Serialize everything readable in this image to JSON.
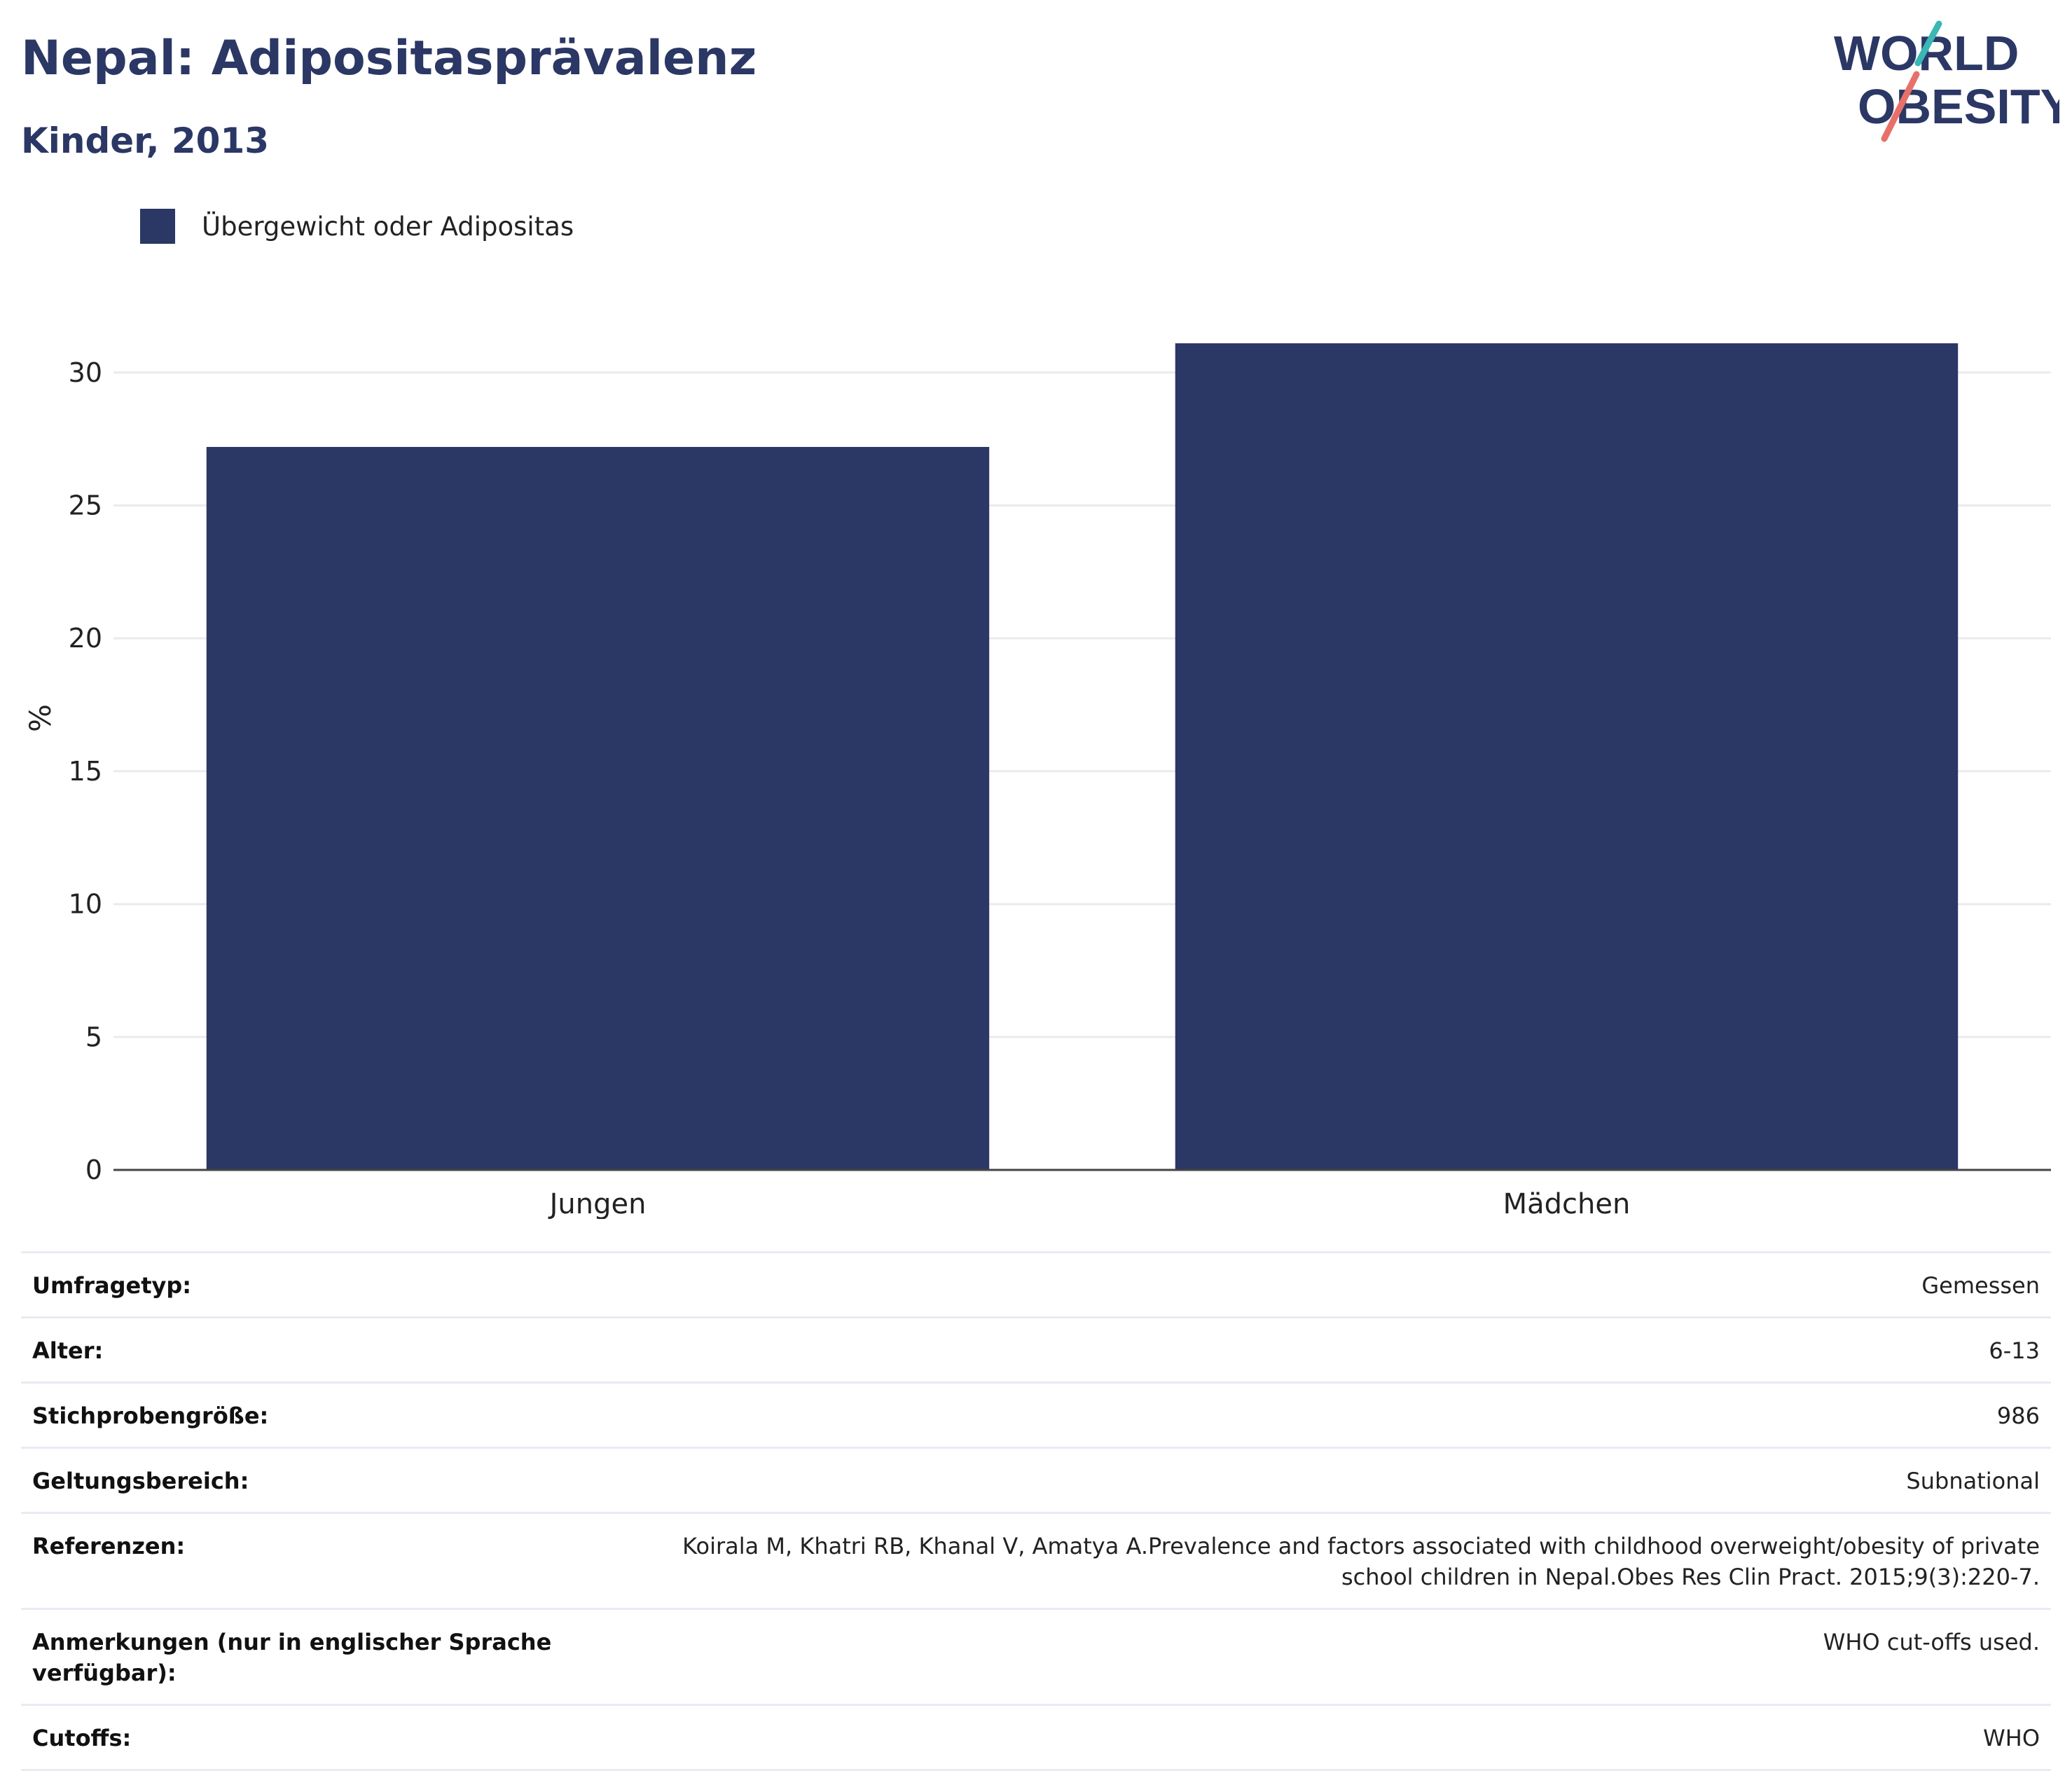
{
  "header": {
    "title": "Nepal: Adipositasprävalenz",
    "subtitle": "Kinder, 2013"
  },
  "logo": {
    "line1": "WORLD",
    "line2": "OBESITY",
    "text_color": "#2b3764",
    "slash_teal": "#3bb7b5",
    "slash_coral": "#e8706a"
  },
  "chart_data": {
    "type": "bar",
    "title": "",
    "categories": [
      "Jungen",
      "Mädchen"
    ],
    "series": [
      {
        "name": "Übergewicht oder Adipositas",
        "values": [
          27.2,
          31.1
        ],
        "color": "#2b3764"
      }
    ],
    "ylabel": "%",
    "xlabel": "",
    "ylim": [
      0,
      34
    ],
    "yticks": [
      0,
      5,
      10,
      15,
      20,
      25,
      30
    ],
    "grid": true,
    "legend_position": "top-left"
  },
  "details": [
    {
      "label": "Umfragetyp:",
      "value": "Gemessen"
    },
    {
      "label": "Alter:",
      "value": "6-13"
    },
    {
      "label": "Stichprobengröße:",
      "value": "986"
    },
    {
      "label": "Geltungsbereich:",
      "value": "Subnational"
    },
    {
      "label": "Referenzen:",
      "value": "Koirala M, Khatri RB, Khanal V, Amatya A.Prevalence and factors associated with childhood overweight/obesity of private school children in Nepal.Obes Res Clin Pract. 2015;9(3):220-7."
    },
    {
      "label": "Anmerkungen (nur in englischer Sprache verfügbar):",
      "value": "WHO cut-offs used."
    },
    {
      "label": "Cutoffs:",
      "value": "WHO"
    }
  ]
}
